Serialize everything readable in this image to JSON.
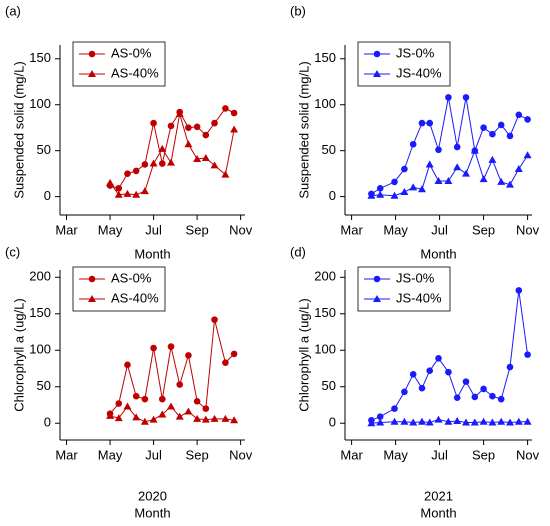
{
  "chart_data": [
    {
      "type": "line",
      "panel": "(a)",
      "ylabel": "Suspended solid (mg/L)",
      "xlabel": "Month",
      "xlim": [
        2.7,
        11.2
      ],
      "ylim": [
        -20,
        165
      ],
      "xticks": [
        {
          "value": 3,
          "label": "Mar"
        },
        {
          "value": 5,
          "label": "May"
        },
        {
          "value": 7,
          "label": "Jul"
        },
        {
          "value": 9,
          "label": "Sep"
        },
        {
          "value": 11,
          "label": "Nov"
        }
      ],
      "yticks": [
        0,
        50,
        100,
        150
      ],
      "legend": "upper left",
      "series": [
        {
          "name": "AS-0%",
          "color": "#c00000",
          "marker": "circle",
          "x": [
            5.0,
            5.4,
            5.8,
            6.2,
            6.6,
            7.0,
            7.4,
            7.8,
            8.2,
            8.6,
            9.0,
            9.4,
            9.8,
            10.3,
            10.7
          ],
          "values": [
            12,
            9,
            25,
            28,
            35,
            80,
            36,
            77,
            92,
            75,
            76,
            67,
            80,
            96,
            91
          ]
        },
        {
          "name": "AS-40%",
          "color": "#c00000",
          "marker": "triangle",
          "x": [
            5.0,
            5.4,
            5.8,
            6.2,
            6.6,
            7.0,
            7.4,
            7.8,
            8.2,
            8.6,
            9.0,
            9.4,
            9.8,
            10.3,
            10.7
          ],
          "values": [
            15,
            2,
            3,
            2,
            6,
            36,
            52,
            37,
            90,
            57,
            41,
            42,
            34,
            24,
            73
          ]
        }
      ]
    },
    {
      "type": "line",
      "panel": "(b)",
      "ylabel": "Suspended solid (mg/L)",
      "xlabel": "Month",
      "xlim": [
        2.7,
        11.2
      ],
      "ylim": [
        -20,
        165
      ],
      "xticks": [
        {
          "value": 3,
          "label": "Mar"
        },
        {
          "value": 5,
          "label": "May"
        },
        {
          "value": 7,
          "label": "Jul"
        },
        {
          "value": 9,
          "label": "Sep"
        },
        {
          "value": 11,
          "label": "Nov"
        }
      ],
      "yticks": [
        0,
        50,
        100,
        150
      ],
      "legend": "upper left",
      "series": [
        {
          "name": "JS-0%",
          "color": "#1a1aff",
          "marker": "circle",
          "x": [
            3.9,
            4.3,
            4.95,
            5.4,
            5.8,
            6.2,
            6.55,
            6.95,
            7.4,
            7.8,
            8.2,
            8.6,
            9.0,
            9.4,
            9.8,
            10.2,
            10.6,
            11.0
          ],
          "values": [
            3,
            9,
            16,
            30,
            57,
            80,
            80,
            51,
            108,
            54,
            108,
            50,
            75,
            68,
            78,
            66,
            89,
            84
          ]
        },
        {
          "name": "JS-40%",
          "color": "#1a1aff",
          "marker": "triangle",
          "x": [
            3.9,
            4.3,
            4.95,
            5.4,
            5.8,
            6.2,
            6.55,
            6.95,
            7.4,
            7.8,
            8.2,
            8.6,
            9.0,
            9.4,
            9.8,
            10.2,
            10.6,
            11.0
          ],
          "values": [
            1,
            2,
            1,
            5,
            10,
            8,
            35,
            17,
            17,
            32,
            25,
            50,
            19,
            40,
            16,
            13,
            30,
            45
          ]
        }
      ]
    },
    {
      "type": "line",
      "panel": "(c)",
      "ylabel": "Chlorophyll a (ug/L)",
      "xlabel": "Month",
      "year": "2020",
      "xlim": [
        2.7,
        11.2
      ],
      "ylim": [
        -23,
        210
      ],
      "xticks": [
        {
          "value": 3,
          "label": "Mar"
        },
        {
          "value": 5,
          "label": "May"
        },
        {
          "value": 7,
          "label": "Jul"
        },
        {
          "value": 9,
          "label": "Sep"
        },
        {
          "value": 11,
          "label": "Nov"
        }
      ],
      "yticks": [
        0,
        50,
        100,
        150,
        200
      ],
      "legend": "upper left",
      "series": [
        {
          "name": "AS-0%",
          "color": "#c00000",
          "marker": "circle",
          "x": [
            5.0,
            5.4,
            5.8,
            6.2,
            6.6,
            7.0,
            7.4,
            7.8,
            8.2,
            8.6,
            9.0,
            9.4,
            9.8,
            10.3,
            10.7
          ],
          "values": [
            13,
            27,
            80,
            37,
            33,
            103,
            33,
            105,
            53,
            93,
            30,
            20,
            142,
            83,
            95
          ]
        },
        {
          "name": "AS-40%",
          "color": "#c00000",
          "marker": "triangle",
          "x": [
            5.0,
            5.4,
            5.8,
            6.2,
            6.6,
            7.0,
            7.4,
            7.8,
            8.2,
            8.6,
            9.0,
            9.4,
            9.8,
            10.3,
            10.7
          ],
          "values": [
            10,
            7,
            23,
            8,
            2,
            5,
            12,
            23,
            9,
            16,
            6,
            5,
            6,
            6,
            4
          ]
        }
      ]
    },
    {
      "type": "line",
      "panel": "(d)",
      "ylabel": "Chlorophyll a (ug/L)",
      "xlabel": "Month",
      "year": "2021",
      "xlim": [
        2.7,
        11.2
      ],
      "ylim": [
        -23,
        210
      ],
      "xticks": [
        {
          "value": 3,
          "label": "Mar"
        },
        {
          "value": 5,
          "label": "May"
        },
        {
          "value": 7,
          "label": "Jul"
        },
        {
          "value": 9,
          "label": "Sep"
        },
        {
          "value": 11,
          "label": "Nov"
        }
      ],
      "yticks": [
        0,
        50,
        100,
        150,
        200
      ],
      "legend": "upper left",
      "series": [
        {
          "name": "JS-0%",
          "color": "#1a1aff",
          "marker": "circle",
          "x": [
            3.9,
            4.3,
            4.95,
            5.4,
            5.8,
            6.2,
            6.55,
            6.95,
            7.4,
            7.8,
            8.2,
            8.6,
            9.0,
            9.4,
            9.8,
            10.2,
            10.6,
            11.0
          ],
          "values": [
            4,
            9,
            20,
            43,
            67,
            48,
            72,
            89,
            70,
            35,
            57,
            36,
            47,
            37,
            33,
            77,
            182,
            94
          ]
        },
        {
          "name": "JS-40%",
          "color": "#1a1aff",
          "marker": "triangle",
          "x": [
            3.9,
            4.3,
            4.95,
            5.4,
            5.8,
            6.2,
            6.55,
            6.95,
            7.4,
            7.8,
            8.2,
            8.6,
            9.0,
            9.4,
            9.8,
            10.2,
            10.6,
            11.0
          ],
          "values": [
            0,
            1,
            2,
            2,
            1,
            2,
            1,
            5,
            2,
            3,
            1,
            1,
            2,
            1,
            2,
            1,
            2,
            2
          ]
        }
      ]
    }
  ]
}
